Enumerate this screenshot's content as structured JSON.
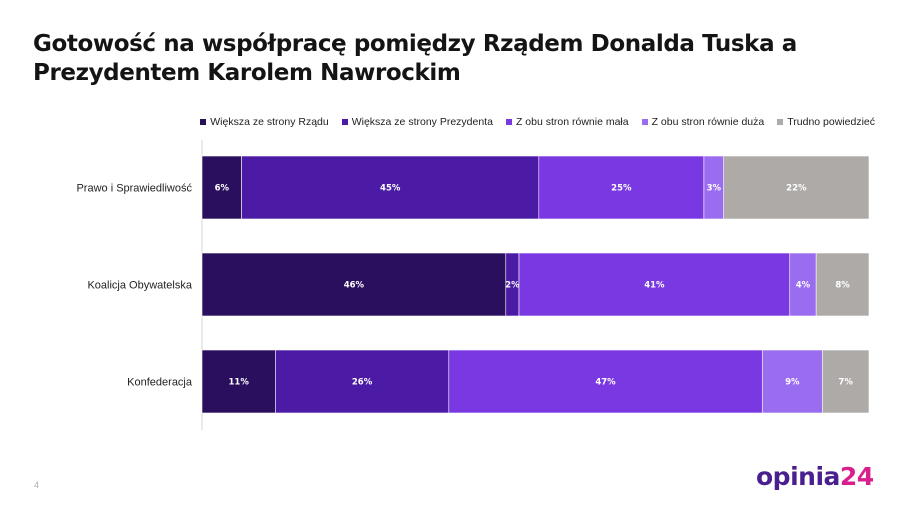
{
  "title": "Gotowość na współpracę pomiędzy Rządem Donalda Tuska a Prezydentem Karolem Nawrockim",
  "page_number": "4",
  "logo": {
    "text": "opinia",
    "number": "24"
  },
  "colors": {
    "series": [
      "#2a0f5e",
      "#4b1ba6",
      "#7a38e3",
      "#9a6cf0",
      "#aeaaa8"
    ]
  },
  "chart_data": {
    "type": "bar",
    "orientation": "horizontal",
    "stacked": true,
    "value_format": "percent",
    "categories": [
      "Prawo i Sprawiedliwość",
      "Koalicja Obywatelska",
      "Konfederacja"
    ],
    "legend_position": "top-right",
    "series": [
      {
        "name": "Większa ze strony Rządu",
        "values": [
          6,
          46,
          11
        ],
        "labels": [
          "6%",
          "46%",
          "11%"
        ]
      },
      {
        "name": "Większa ze strony Prezydenta",
        "values": [
          45,
          2,
          26
        ],
        "labels": [
          "45%",
          "2%",
          "26%"
        ]
      },
      {
        "name": "Z obu stron równie mała",
        "values": [
          25,
          41,
          47
        ],
        "labels": [
          "25%",
          "41%",
          "47%"
        ]
      },
      {
        "name": "Z obu stron równie duża",
        "values": [
          3,
          4,
          9
        ],
        "labels": [
          "3%",
          "4%",
          "9%"
        ]
      },
      {
        "name": "Trudno powiedzieć",
        "values": [
          22,
          8,
          7
        ],
        "labels": [
          "22%",
          "8%",
          "7%"
        ]
      }
    ]
  }
}
